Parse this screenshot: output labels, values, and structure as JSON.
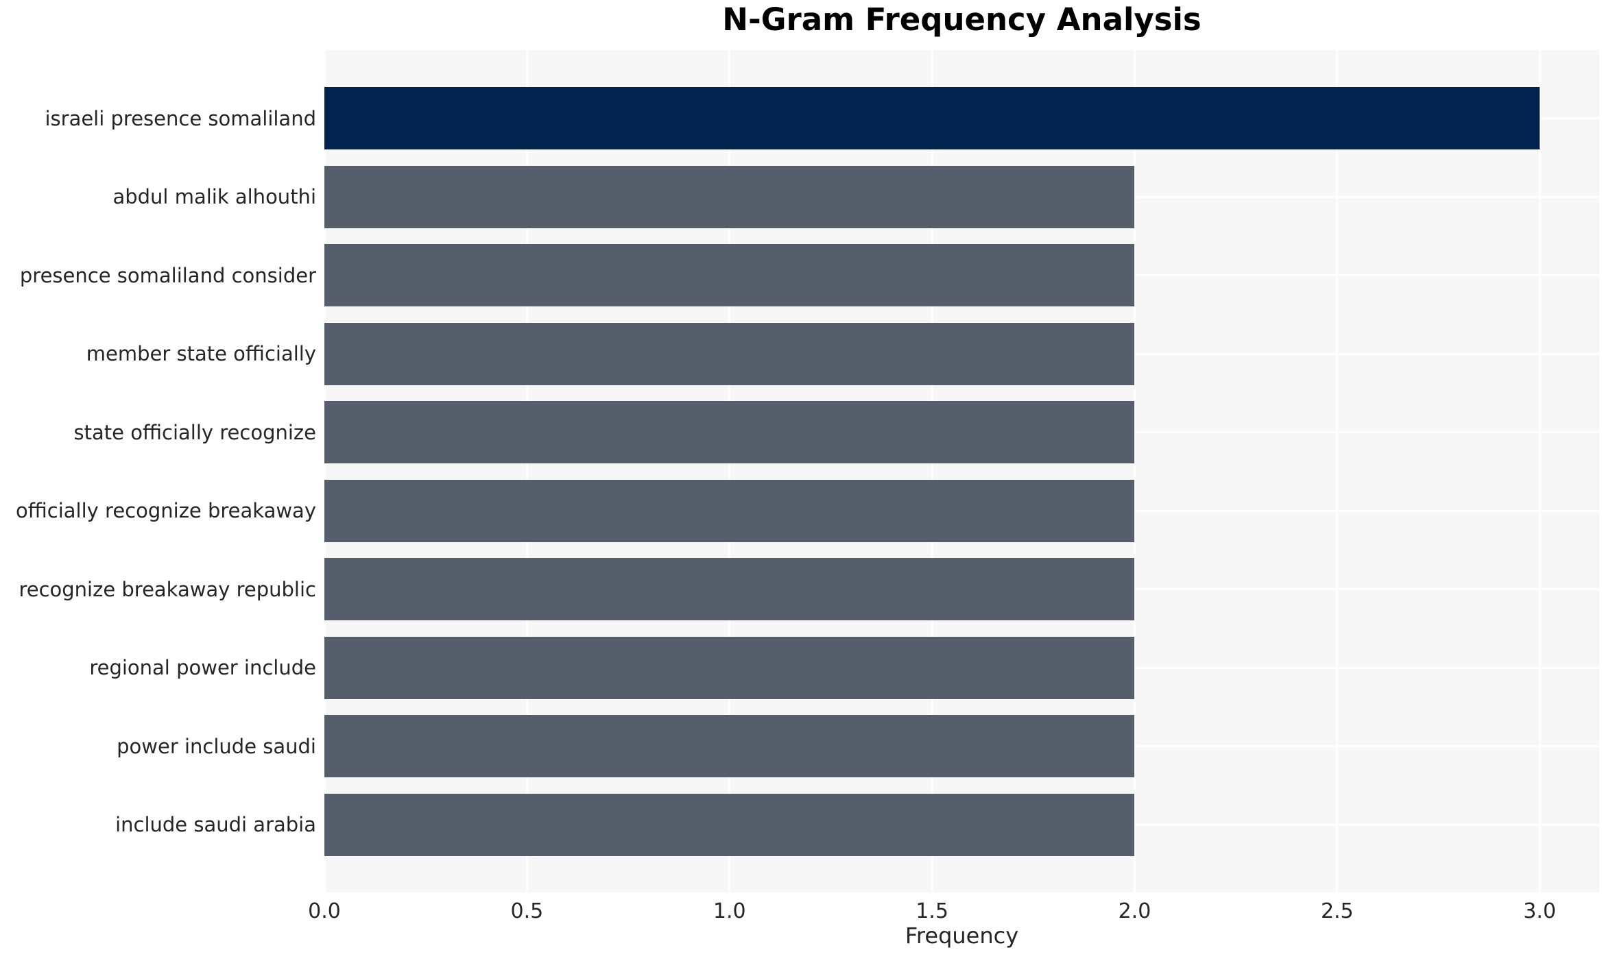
{
  "title": "N-Gram Frequency Analysis",
  "chart_data": {
    "type": "bar",
    "orientation": "horizontal",
    "title": "N-Gram Frequency Analysis",
    "categories": [
      "israeli presence somaliland",
      "abdul malik alhouthi",
      "presence somaliland consider",
      "member state officially",
      "state officially recognize",
      "officially recognize breakaway",
      "recognize breakaway republic",
      "regional power include",
      "power include saudi",
      "include saudi arabia"
    ],
    "values": [
      3,
      2,
      2,
      2,
      2,
      2,
      2,
      2,
      2,
      2
    ],
    "xlabel": "Frequency",
    "ylabel": "",
    "xlim": [
      0,
      3.147
    ],
    "xticks": [
      0.0,
      0.5,
      1.0,
      1.5,
      2.0,
      2.5,
      3.0
    ],
    "xtick_labels": [
      "0.0",
      "0.5",
      "1.0",
      "1.5",
      "2.0",
      "2.5",
      "3.0"
    ],
    "grid": true,
    "legend": false,
    "colors": {
      "highlight_bar": "#02234e",
      "default_bar": "#565d6b",
      "plot_background": "#f7f7f8",
      "grid_line": "#ffffff",
      "figure_background": "#ffffff",
      "text": "#262626",
      "title_text": "#000000"
    }
  }
}
